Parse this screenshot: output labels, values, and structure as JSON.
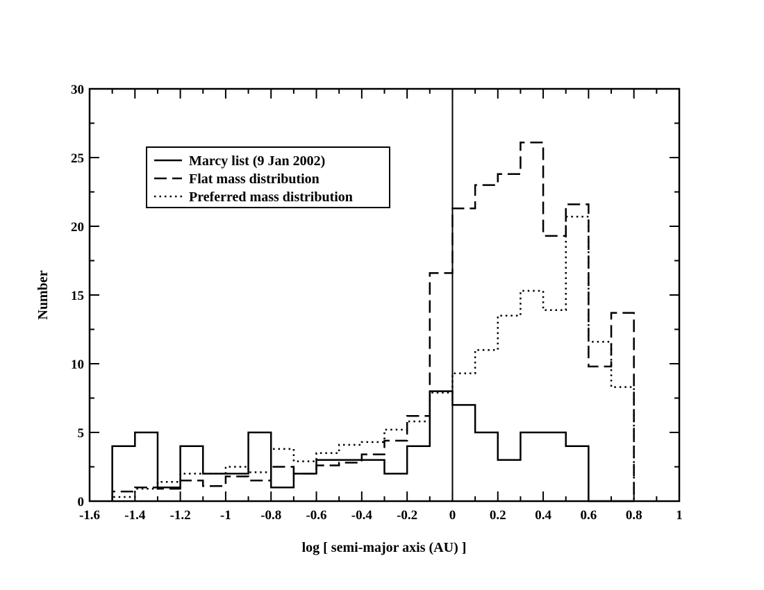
{
  "chart_data": {
    "type": "step",
    "title": "",
    "xlabel": "log [ semi-major axis (AU) ]",
    "ylabel": "Number",
    "xlim": [
      -1.6,
      1
    ],
    "ylim": [
      0,
      30
    ],
    "x_ticks": [
      -1.6,
      -1.4,
      -1.2,
      -1,
      -0.8,
      -0.6,
      -0.4,
      -0.2,
      0,
      0.2,
      0.4,
      0.6,
      0.8,
      1
    ],
    "x_tick_labels": [
      "-1.6",
      "-1.4",
      "-1.2",
      "-1",
      "-0.8",
      "-0.6",
      "-0.4",
      "-0.2",
      "0",
      "0.2",
      "0.4",
      "0.6",
      "0.8",
      "1"
    ],
    "y_ticks": [
      0,
      5,
      10,
      15,
      20,
      25,
      30
    ],
    "y_tick_labels": [
      "0",
      "5",
      "10",
      "15",
      "20",
      "25",
      "30"
    ],
    "reference_line_x": 0,
    "grid": false,
    "legend_position": "top-left",
    "bin_edges": [
      -1.5,
      -1.4,
      -1.3,
      -1.2,
      -1.1,
      -1.0,
      -0.9,
      -0.8,
      -0.7,
      -0.6,
      -0.5,
      -0.4,
      -0.3,
      -0.2,
      -0.1,
      0,
      0.1,
      0.2,
      0.3,
      0.4,
      0.5,
      0.6,
      0.7,
      0.8
    ],
    "series": [
      {
        "name": "Marcy list (9 Jan 2002)",
        "style": "solid",
        "color": "#000000",
        "values": [
          4,
          5,
          1,
          4,
          2,
          2,
          5,
          1,
          2,
          3,
          3,
          3,
          2,
          4,
          8,
          7,
          5,
          3,
          5,
          5,
          4,
          0,
          0
        ]
      },
      {
        "name": "Flat mass distribution",
        "style": "dashed",
        "color": "#000000",
        "values": [
          0.7,
          1.0,
          0.9,
          1.5,
          1.1,
          1.8,
          1.5,
          2.5,
          2.0,
          2.6,
          2.8,
          3.4,
          4.4,
          6.2,
          16.6,
          21.3,
          23.0,
          23.8,
          26.1,
          19.3,
          21.6,
          9.8,
          13.7
        ]
      },
      {
        "name": "Preferred mass distribution",
        "style": "dotted",
        "color": "#000000",
        "values": [
          0.3,
          0.9,
          1.4,
          2.0,
          2.0,
          2.5,
          2.1,
          3.8,
          2.9,
          3.5,
          4.1,
          4.3,
          5.2,
          5.8,
          7.9,
          9.3,
          11.0,
          13.5,
          15.3,
          13.9,
          20.7,
          11.6,
          8.3
        ]
      }
    ]
  }
}
